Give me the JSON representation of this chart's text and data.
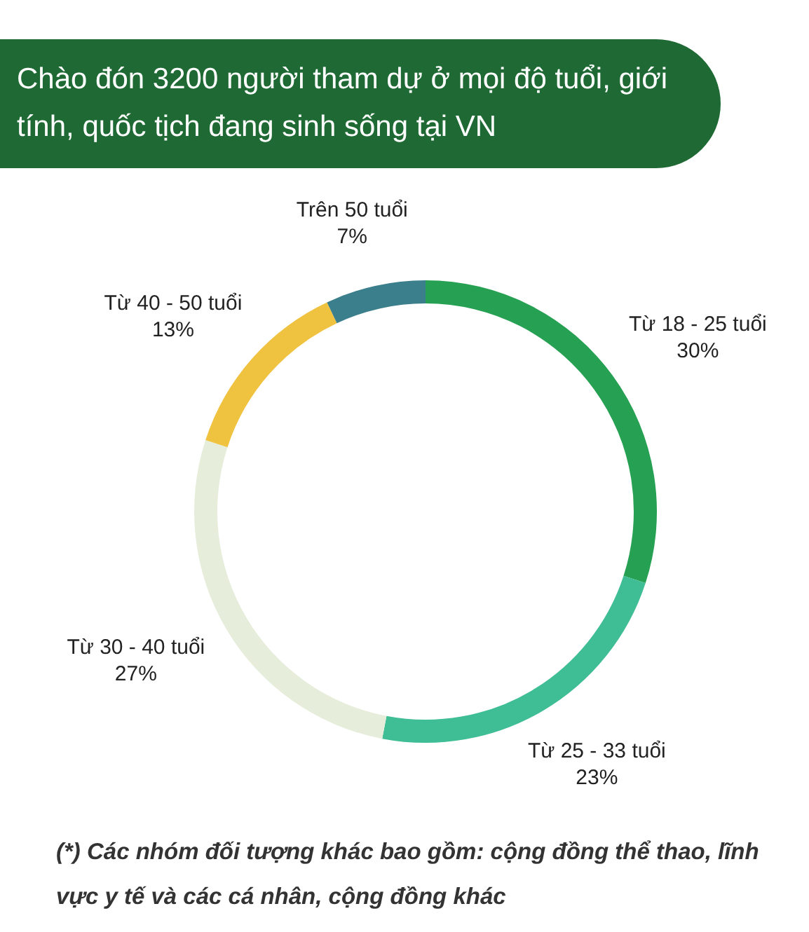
{
  "chart_data": {
    "type": "donut",
    "title": "Chào đón 3200 người tham dự ở mọi độ tuổi, giới tính, quốc tịch đang sinh sống tại VN",
    "categories": [
      "Từ 18 - 25 tuổi",
      "Từ 25 - 33 tuổi",
      "Từ 30 - 40 tuổi",
      "Từ 40 - 50 tuổi",
      "Trên 50 tuổi"
    ],
    "values": [
      30,
      23,
      27,
      13,
      7
    ],
    "colors": [
      "#26a052",
      "#3fbd94",
      "#e6eedb",
      "#efc23f",
      "#3a7f8b"
    ],
    "value_labels": [
      "30%",
      "23%",
      "27%",
      "13%",
      "7%"
    ],
    "annotations": [
      "(*) Các nhóm đối tượng khác bao gồm: cộng đồng thể thao, lĩnh vực y tế và các cá nhân, cộng đồng khác"
    ]
  }
}
